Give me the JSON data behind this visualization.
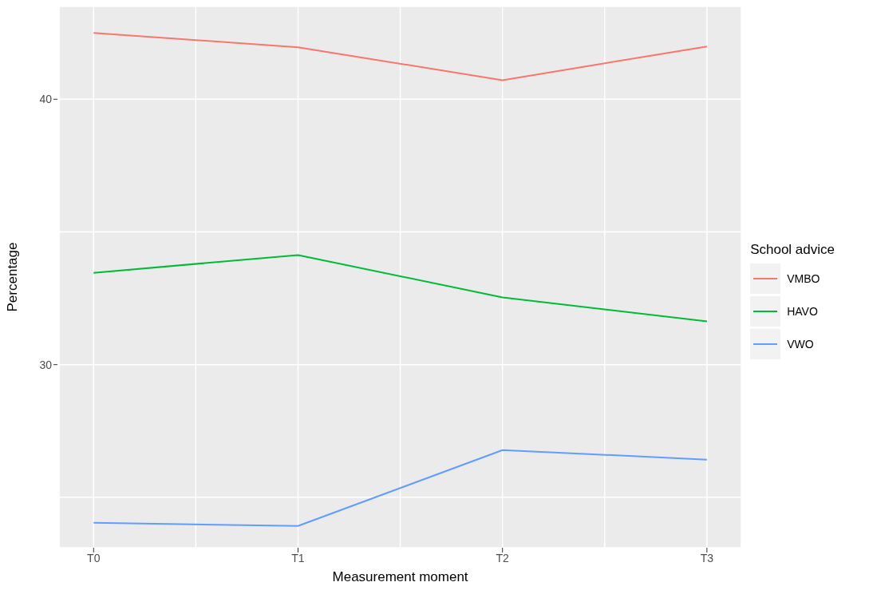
{
  "chart_data": {
    "type": "line",
    "xlabel": "Measurement moment",
    "ylabel": "Percentage",
    "legend_title": "School advice",
    "legend": "right",
    "grid": true,
    "categories": [
      "T0",
      "T1",
      "T2",
      "T3"
    ],
    "ylim": [
      23.1,
      43.5
    ],
    "yticks": [
      {
        "value": 25,
        "label": null
      },
      30,
      {
        "value": 35,
        "label": null
      },
      40
    ],
    "series": [
      {
        "name": "VMBO",
        "color": "#f8766d",
        "values": [
          42.5,
          41.96,
          40.72,
          41.99
        ]
      },
      {
        "name": "HAVO",
        "color": "#00ba38",
        "values": [
          33.46,
          34.13,
          32.53,
          31.63
        ]
      },
      {
        "name": "VWO",
        "color": "#619cff",
        "values": [
          24.04,
          23.92,
          26.78,
          26.42
        ]
      }
    ]
  }
}
